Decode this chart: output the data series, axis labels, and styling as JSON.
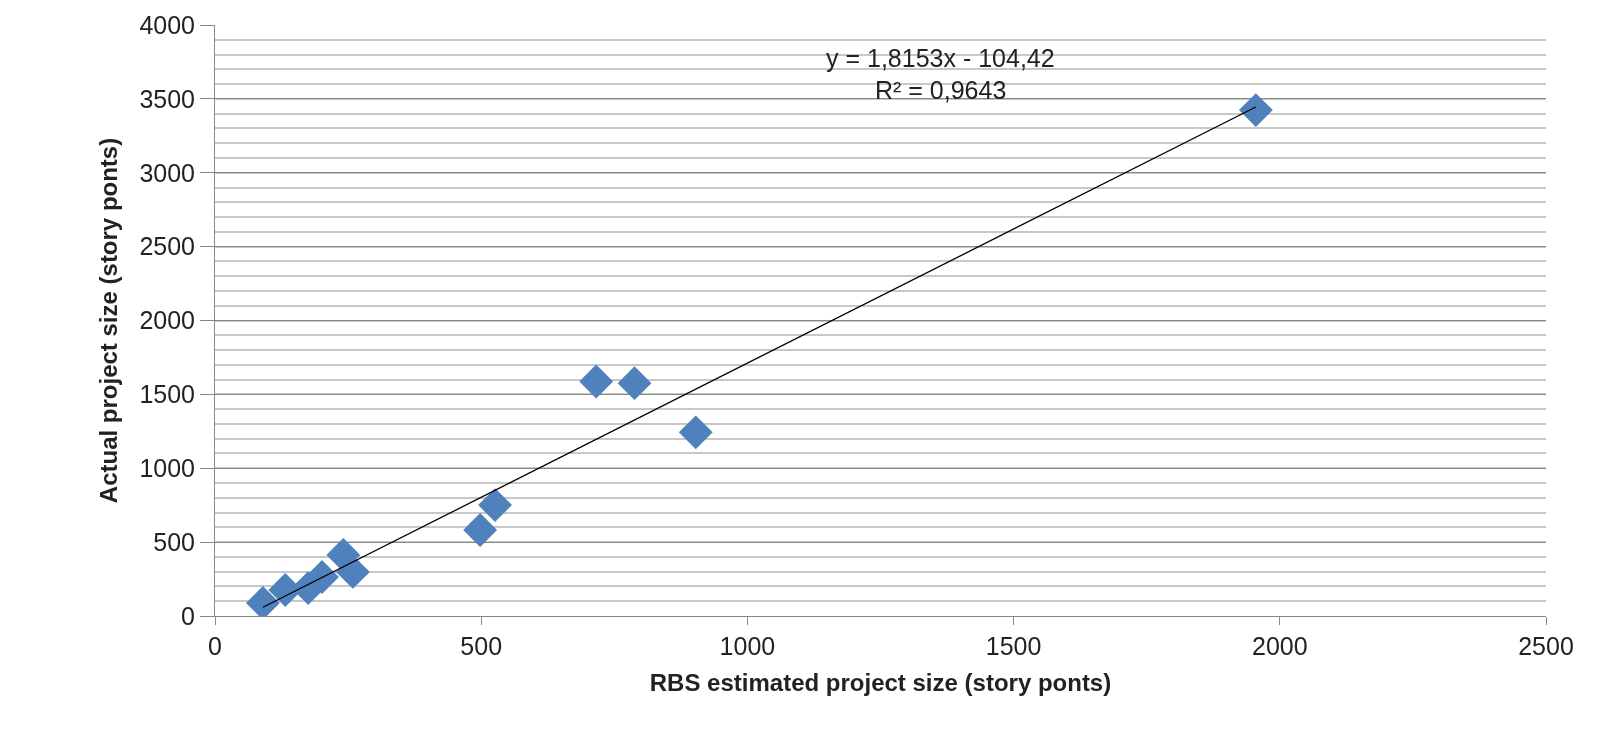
{
  "chart_data": {
    "type": "scatter",
    "xlabel": "RBS estimated project size (story ponts)",
    "ylabel": "Actual project size (story ponts)",
    "xlim": [
      0,
      2500
    ],
    "xticks": [
      0,
      500,
      1000,
      1500,
      2000,
      2500
    ],
    "ylim": [
      0,
      4000
    ],
    "yticks": [
      0,
      500,
      1000,
      1500,
      2000,
      2500,
      3000,
      3500,
      4000
    ],
    "grid": "y",
    "marker": "diamond",
    "legend": false,
    "annotations": [
      "y = 1,8153x - 104,42",
      "R² = 0,9643"
    ],
    "series": [
      {
        "color": "#4f81bd",
        "x": [
          90,
          132,
          175,
          201,
          241,
          259,
          498,
          526,
          716,
          788,
          903,
          1955
        ],
        "values": [
          88,
          176,
          189,
          264,
          413,
          298,
          582,
          751,
          1587,
          1576,
          1243,
          3424
        ]
      },
      {
        "type": "line",
        "color": "#000000",
        "marker": "none",
        "line_style": "solid",
        "x": [
          90,
          1955
        ],
        "values": [
          59,
          3445
        ]
      }
    ]
  }
}
